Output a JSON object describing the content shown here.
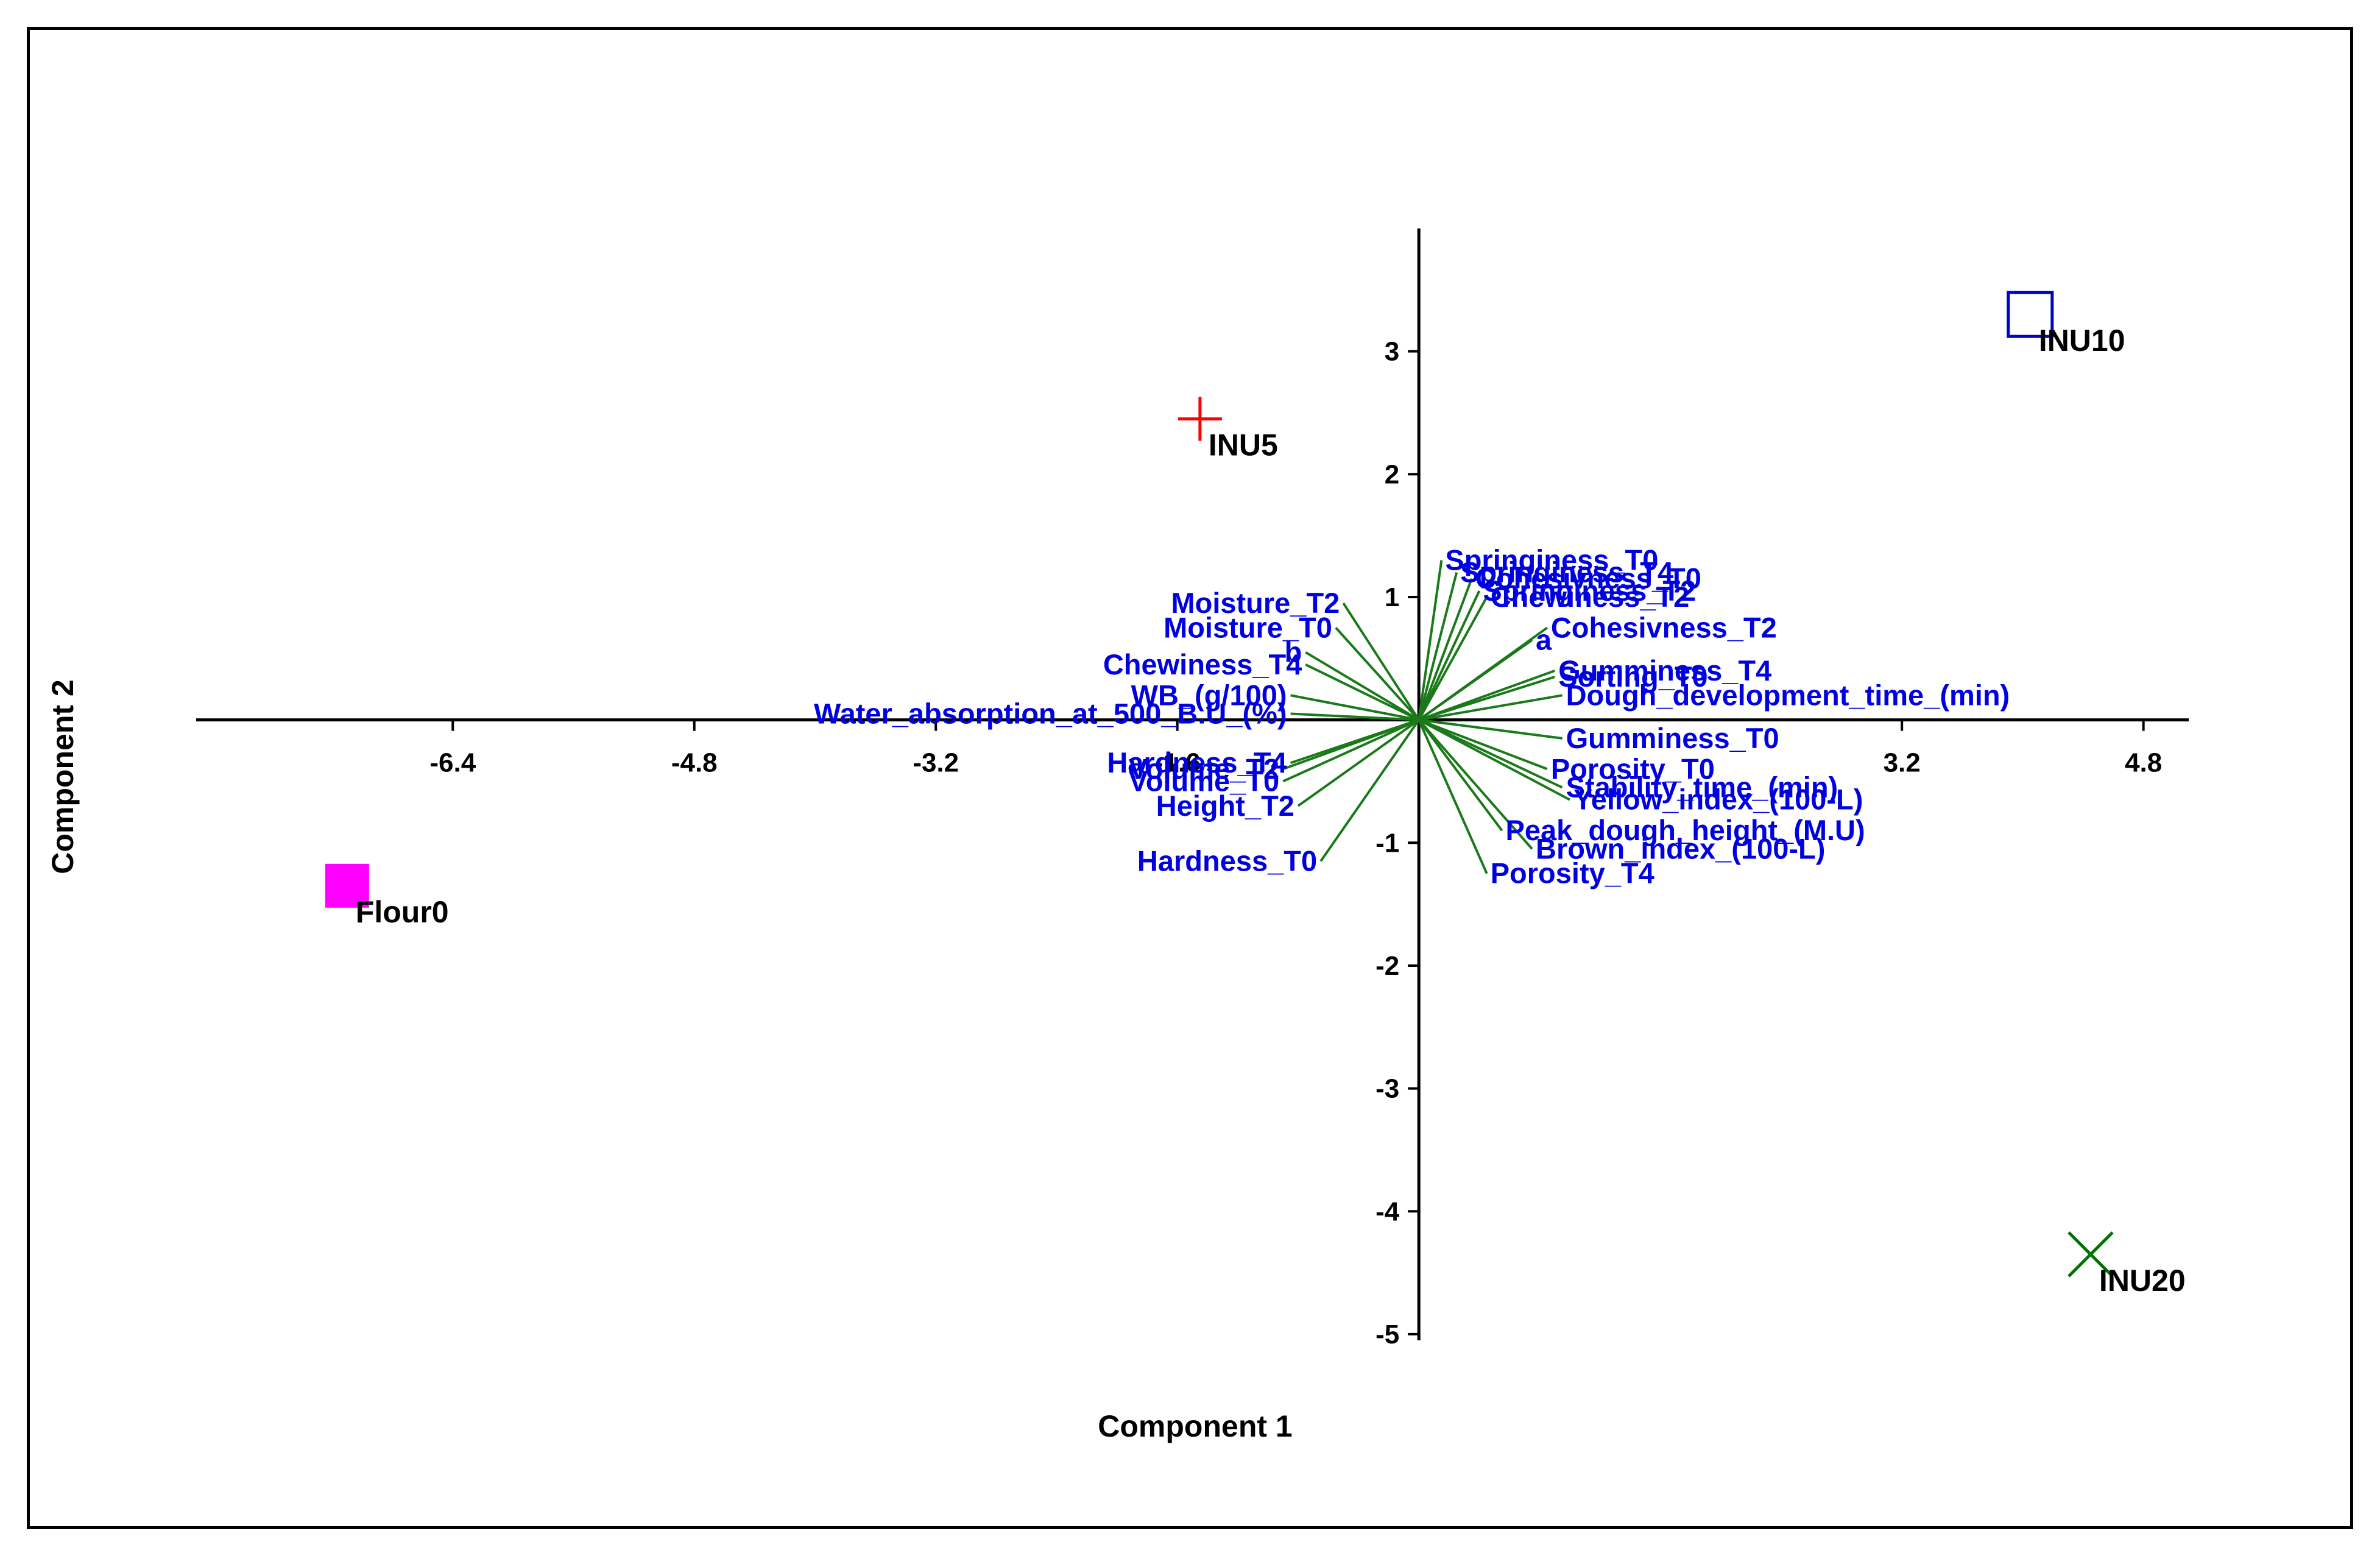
{
  "chart_data": {
    "type": "scatter",
    "xlabel": "Component 1",
    "ylabel": "Component 2",
    "xlim": [
      -8.1,
      5.1
    ],
    "ylim": [
      -5.05,
      4.0
    ],
    "x_ticks": [
      -6.4,
      -4.8,
      -3.2,
      -1.6,
      3.2,
      4.8
    ],
    "x_tick_labels": [
      "-6.4",
      "-4.8",
      "-3.2",
      "-1.6",
      "3.2",
      "4.8"
    ],
    "y_ticks": [
      -5,
      -4,
      -3,
      -2,
      -1,
      1,
      2,
      3
    ],
    "y_tick_labels": [
      "-5",
      "-4",
      "-3",
      "-2",
      "-1",
      "1",
      "2",
      "3"
    ],
    "grid": false,
    "points": [
      {
        "label": "Flour0",
        "x": -7.1,
        "y": -1.35,
        "marker": "filled-square",
        "color": "#ff00ff"
      },
      {
        "label": "INU5",
        "x": -1.45,
        "y": 2.45,
        "marker": "plus",
        "color": "#ff0000"
      },
      {
        "label": "INU10",
        "x": 4.05,
        "y": 3.3,
        "marker": "open-square",
        "color": "#0000cc"
      },
      {
        "label": "INU20",
        "x": 4.45,
        "y": -4.35,
        "marker": "x",
        "color": "#007000"
      }
    ],
    "vector_color": "#1a7a1a",
    "label_color": "#0000e0",
    "loadings": [
      {
        "label": "Springiness_T0",
        "x": 0.15,
        "y": 1.3
      },
      {
        "label": "Springiness_T4",
        "x": 0.25,
        "y": 1.2
      },
      {
        "label": "Cohesivness_T0",
        "x": 0.35,
        "y": 1.15
      },
      {
        "label": "Springiness_T2",
        "x": 0.4,
        "y": 1.05
      },
      {
        "label": "Chewiness_T2",
        "x": 0.45,
        "y": 1.0
      },
      {
        "label": "Moisture_T2",
        "x": -0.5,
        "y": 0.95
      },
      {
        "label": "Moisture_T0",
        "x": -0.55,
        "y": 0.75
      },
      {
        "label": "a",
        "x": 0.75,
        "y": 0.65
      },
      {
        "label": "Cohesivness_T2",
        "x": 0.85,
        "y": 0.75
      },
      {
        "label": "b",
        "x": -0.75,
        "y": 0.55
      },
      {
        "label": "Chewiness_T4",
        "x": -0.75,
        "y": 0.45
      },
      {
        "label": "Gumminess_T4",
        "x": 0.9,
        "y": 0.4
      },
      {
        "label": "Sorting_T0",
        "x": 0.9,
        "y": 0.35
      },
      {
        "label": "Dough_development_time_(min)",
        "x": 0.95,
        "y": 0.2
      },
      {
        "label": "WB_(g/100)",
        "x": -0.85,
        "y": 0.2
      },
      {
        "label": "Water_absorption_at_500_B.U_(%)",
        "x": -0.85,
        "y": 0.05
      },
      {
        "label": "Gumminess_T0",
        "x": 0.95,
        "y": -0.15
      },
      {
        "label": "Hardness_T4",
        "x": -0.85,
        "y": -0.35
      },
      {
        "label": "Volume_T2",
        "x": -0.9,
        "y": -0.4
      },
      {
        "label": "Volume_T0",
        "x": -0.9,
        "y": -0.5
      },
      {
        "label": "Porosity_T0",
        "x": 0.85,
        "y": -0.4
      },
      {
        "label": "Stability_time_(min)",
        "x": 0.95,
        "y": -0.55
      },
      {
        "label": "Yellow_index_(100-L)",
        "x": 1.0,
        "y": -0.65
      },
      {
        "label": "Height_T2",
        "x": -0.8,
        "y": -0.7
      },
      {
        "label": "Peak_dough_height_(M.U)",
        "x": 0.55,
        "y": -0.9
      },
      {
        "label": "Brown_index_(100-L)",
        "x": 0.75,
        "y": -1.05
      },
      {
        "label": "Hardness_T0",
        "x": -0.65,
        "y": -1.15
      },
      {
        "label": "Porosity_T4",
        "x": 0.45,
        "y": -1.25
      }
    ]
  }
}
